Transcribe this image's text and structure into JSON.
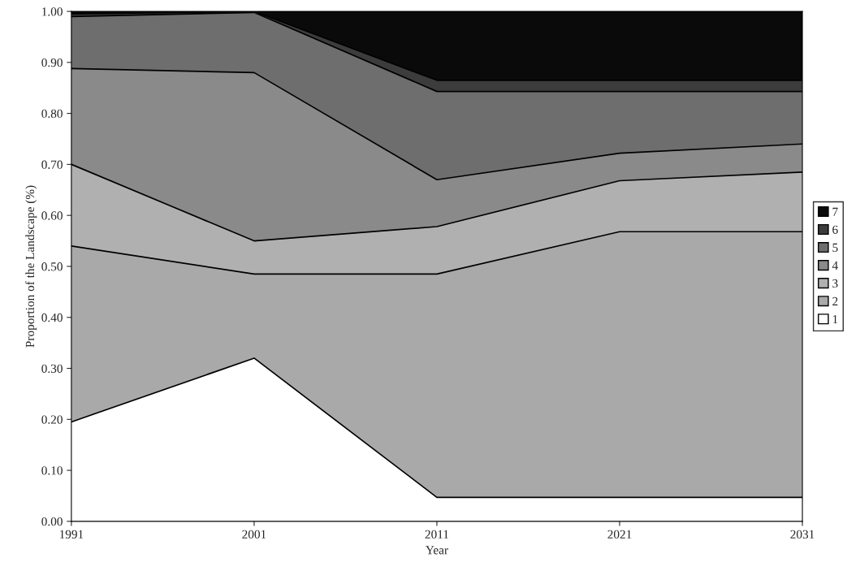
{
  "chart_data": {
    "type": "area",
    "stacked": true,
    "xlabel": "Year",
    "ylabel": "Proportion of the Landscape (%)",
    "x": [
      1991,
      2001,
      2011,
      2021,
      2031
    ],
    "xlim": [
      1991,
      2031
    ],
    "xticks": [
      1991,
      2001,
      2011,
      2021,
      2031
    ],
    "ylim": [
      0,
      1
    ],
    "yticks": [
      {
        "value": 0,
        "label": "0.00"
      },
      {
        "value": 0.1,
        "label": "0.10"
      },
      {
        "value": 0.2,
        "label": "0.20"
      },
      {
        "value": 0.3,
        "label": "0.30"
      },
      {
        "value": 0.4,
        "label": "0.40"
      },
      {
        "value": 0.5,
        "label": "0.50"
      },
      {
        "value": 0.6,
        "label": "0.60"
      },
      {
        "value": 0.7,
        "label": "0.70"
      },
      {
        "value": 0.8,
        "label": "0.80"
      },
      {
        "value": 0.9,
        "label": "0.90"
      },
      {
        "value": 1.0,
        "label": "1.00"
      }
    ],
    "legend": "right",
    "series": [
      {
        "name": "1",
        "color": "#ffffff",
        "values": [
          0.195,
          0.32,
          0.047,
          0.047,
          0.047
        ]
      },
      {
        "name": "2",
        "color": "#a9a9a9",
        "values": [
          0.345,
          0.165,
          0.438,
          0.521,
          0.521
        ]
      },
      {
        "name": "3",
        "color": "#b0b0b0",
        "values": [
          0.16,
          0.065,
          0.093,
          0.1,
          0.117
        ]
      },
      {
        "name": "4",
        "color": "#8a8a8a",
        "values": [
          0.188,
          0.33,
          0.092,
          0.054,
          0.055
        ]
      },
      {
        "name": "5",
        "color": "#6e6e6e",
        "values": [
          0.102,
          0.118,
          0.173,
          0.121,
          0.103
        ]
      },
      {
        "name": "6",
        "color": "#3c3c3c",
        "values": [
          0.005,
          0.002,
          0.022,
          0.022,
          0.022
        ]
      },
      {
        "name": "7",
        "color": "#0a0a0a",
        "values": [
          0.005,
          0.0,
          0.135,
          0.135,
          0.135
        ]
      }
    ]
  }
}
